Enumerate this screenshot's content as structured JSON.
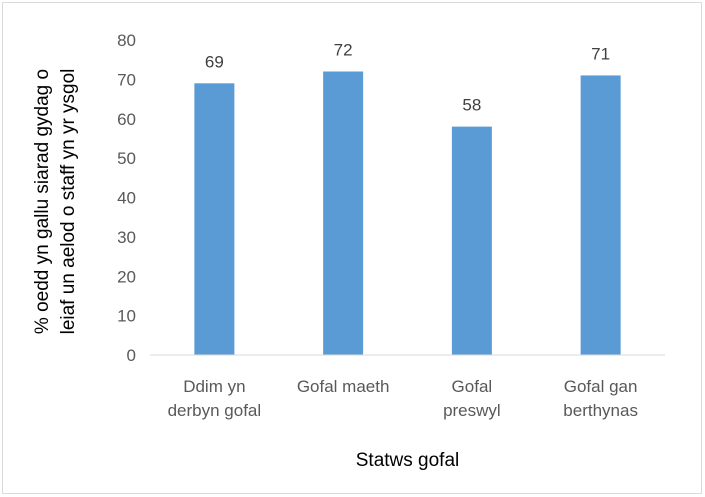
{
  "chart_data": {
    "type": "bar",
    "categories": [
      [
        "Ddim yn",
        "derbyn gofal"
      ],
      [
        "Gofal maeth"
      ],
      [
        "Gofal",
        "preswyl"
      ],
      [
        "Gofal gan",
        "berthynas"
      ]
    ],
    "values": [
      69,
      72,
      58,
      71
    ],
    "data_labels": [
      "69",
      "72",
      "58",
      "71"
    ],
    "xlabel": "Statws gofal",
    "ylabel": [
      "% oedd yn gallu siarad gydag o",
      "leiaf un aelod o staff yn yr ysgol"
    ],
    "ylim": [
      0,
      80
    ],
    "yticks": [
      0,
      10,
      20,
      30,
      40,
      50,
      60,
      70,
      80
    ],
    "grid": false,
    "colors": {
      "bar": "#5b9bd5",
      "axis": "#d9d9d9",
      "text": "#595959"
    }
  }
}
